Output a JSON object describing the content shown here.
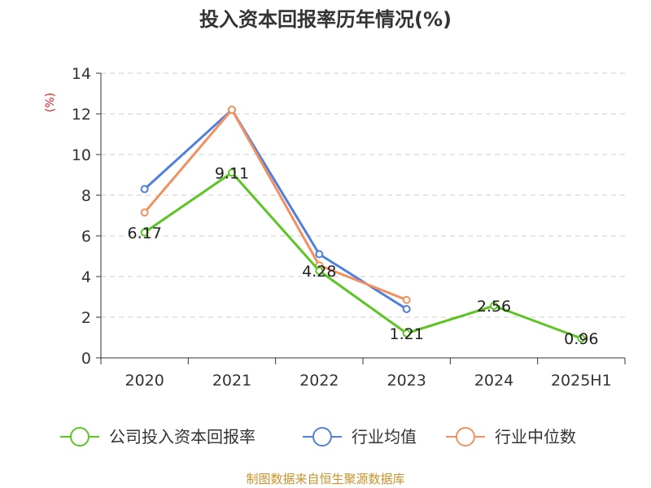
{
  "chart_data": {
    "type": "line",
    "title": "投入资本回报率历年情况(%)",
    "ylabel": "(%)",
    "categories": [
      "2020",
      "2021",
      "2022",
      "2023",
      "2024",
      "2025H1"
    ],
    "ylim": [
      0,
      14
    ],
    "yticks": [
      0,
      2,
      4,
      6,
      8,
      10,
      12,
      14
    ],
    "grid": true,
    "legend_position": "bottom",
    "series": [
      {
        "name": "公司投入资本回报率",
        "color": "#5cc424",
        "values": [
          6.17,
          9.11,
          4.28,
          1.21,
          2.56,
          0.96
        ],
        "show_labels": true
      },
      {
        "name": "行业均值",
        "color": "#4f80dc",
        "values": [
          8.3,
          12.2,
          5.1,
          2.4,
          null,
          null
        ],
        "show_labels": false
      },
      {
        "name": "行业中位数",
        "color": "#f39060",
        "values": [
          7.15,
          12.2,
          4.55,
          2.85,
          null,
          null
        ],
        "show_labels": false
      }
    ],
    "data_labels": [
      "6.17",
      "9.11",
      "4.28",
      "1.21",
      "2.56",
      "0.96"
    ]
  },
  "source_text": "制图数据来自恒生聚源数据库",
  "colors": {
    "axis": "#333333",
    "grid": "#cccccc",
    "ylabel": "#e02020",
    "source": "#c8922a"
  }
}
